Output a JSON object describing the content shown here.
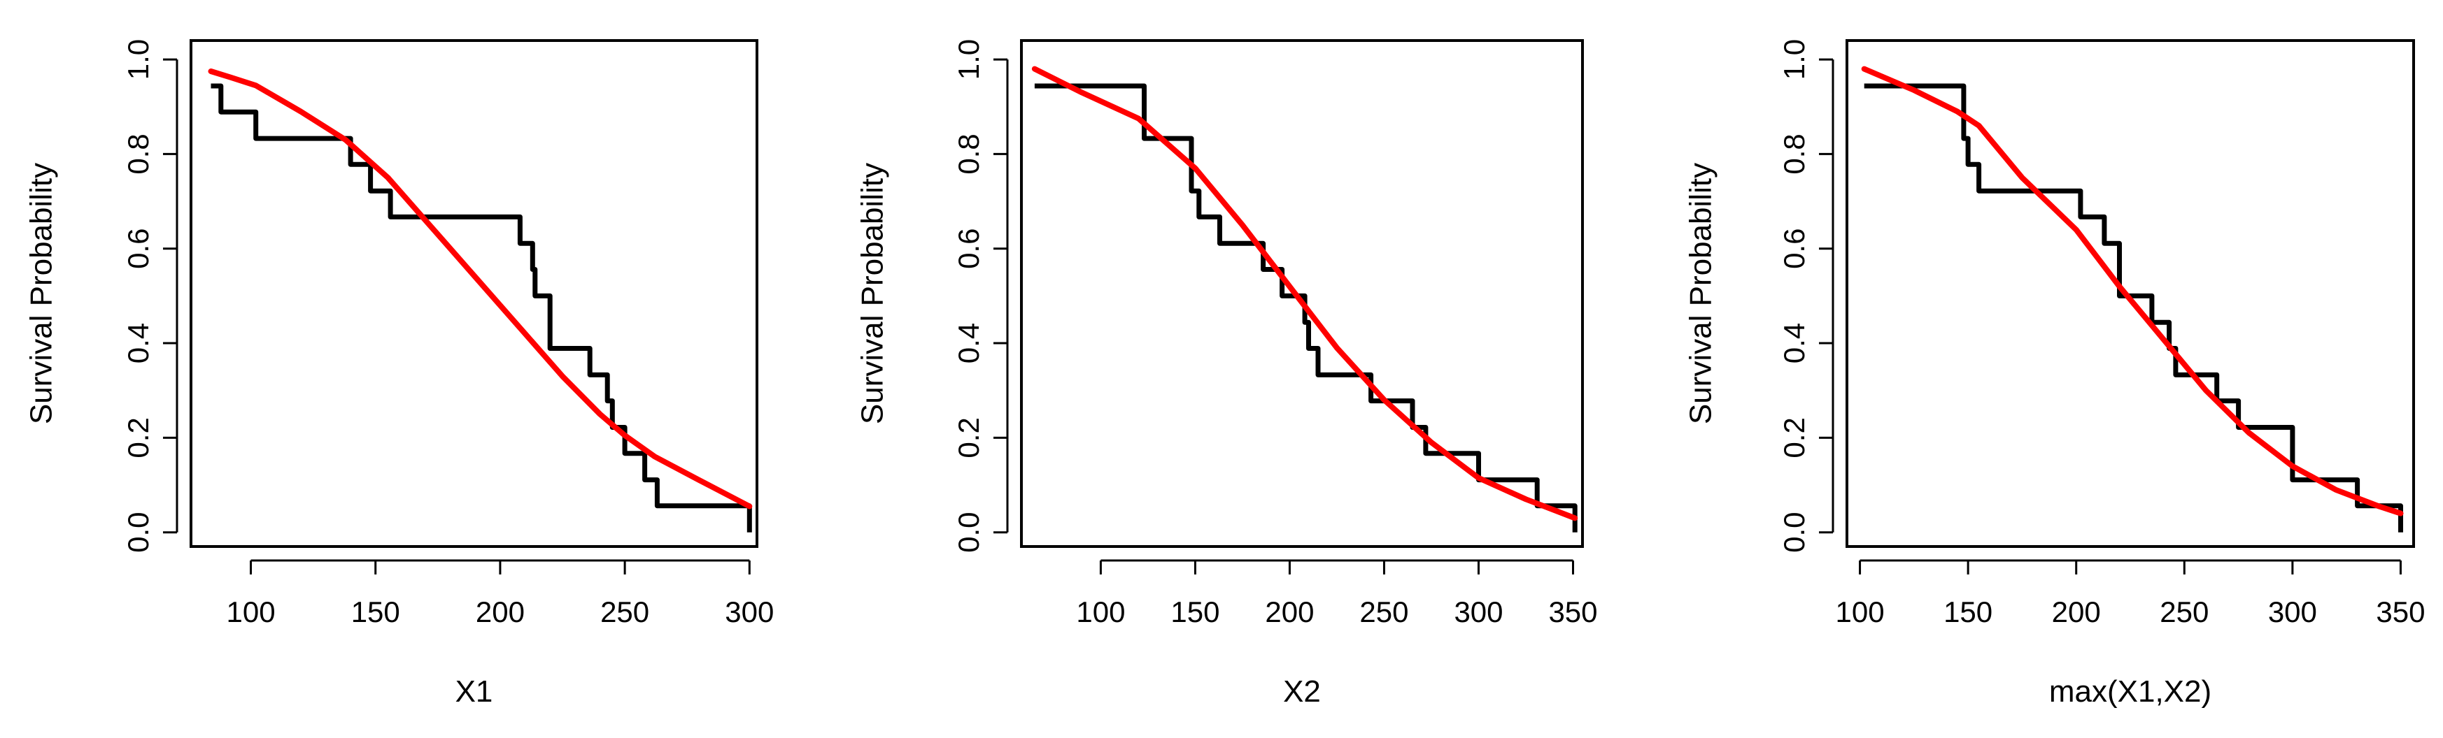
{
  "chart_data": [
    {
      "type": "line",
      "xlabel": "X1",
      "ylabel": "Survival Probability",
      "xlim": [
        76,
        303
      ],
      "ylim": [
        -0.03,
        1.04
      ],
      "x_ticks": [
        100,
        150,
        200,
        250,
        300
      ],
      "y_ticks": [
        0.0,
        0.2,
        0.4,
        0.6,
        0.8,
        1.0
      ],
      "x_tick_labels": [
        "100",
        "150",
        "200",
        "250",
        "300"
      ],
      "y_tick_labels": [
        "0.0",
        "0.2",
        "0.4",
        "0.6",
        "0.8",
        "1.0"
      ],
      "grid": false,
      "series": [
        {
          "kind": "step",
          "color": "#000000",
          "points": [
            [
              84,
              0.944
            ],
            [
              88,
              0.944
            ],
            [
              88,
              0.889
            ],
            [
              102,
              0.889
            ],
            [
              102,
              0.833
            ],
            [
              140,
              0.833
            ],
            [
              140,
              0.778
            ],
            [
              148,
              0.778
            ],
            [
              148,
              0.722
            ],
            [
              156,
              0.722
            ],
            [
              156,
              0.667
            ],
            [
              208,
              0.667
            ],
            [
              208,
              0.611
            ],
            [
              213,
              0.611
            ],
            [
              213,
              0.556
            ],
            [
              214,
              0.556
            ],
            [
              214,
              0.5
            ],
            [
              220,
              0.5
            ],
            [
              220,
              0.389
            ],
            [
              236,
              0.389
            ],
            [
              236,
              0.333
            ],
            [
              243,
              0.333
            ],
            [
              243,
              0.278
            ],
            [
              245,
              0.278
            ],
            [
              245,
              0.222
            ],
            [
              250,
              0.222
            ],
            [
              250,
              0.167
            ],
            [
              258,
              0.167
            ],
            [
              258,
              0.111
            ],
            [
              263,
              0.111
            ],
            [
              263,
              0.056
            ],
            [
              300,
              0.056
            ],
            [
              300,
              0.0
            ]
          ]
        },
        {
          "kind": "curve",
          "color": "#ff0000",
          "points": [
            [
              84,
              0.975
            ],
            [
              92,
              0.962
            ],
            [
              102,
              0.945
            ],
            [
              120,
              0.89
            ],
            [
              138,
              0.83
            ],
            [
              155,
              0.75
            ],
            [
              170,
              0.66
            ],
            [
              190,
              0.54
            ],
            [
              210,
              0.42
            ],
            [
              225,
              0.33
            ],
            [
              240,
              0.25
            ],
            [
              250,
              0.205
            ],
            [
              262,
              0.16
            ],
            [
              280,
              0.11
            ],
            [
              300,
              0.055
            ]
          ]
        }
      ]
    },
    {
      "type": "line",
      "xlabel": "X2",
      "ylabel": "Survival Probability",
      "xlim": [
        58,
        355
      ],
      "ylim": [
        -0.03,
        1.04
      ],
      "x_ticks": [
        100,
        150,
        200,
        250,
        300,
        350
      ],
      "y_ticks": [
        0.0,
        0.2,
        0.4,
        0.6,
        0.8,
        1.0
      ],
      "x_tick_labels": [
        "100",
        "150",
        "200",
        "250",
        "300",
        "350"
      ],
      "y_tick_labels": [
        "0.0",
        "0.2",
        "0.4",
        "0.6",
        "0.8",
        "1.0"
      ],
      "grid": false,
      "series": [
        {
          "kind": "step",
          "color": "#000000",
          "points": [
            [
              65,
              0.944
            ],
            [
              123,
              0.944
            ],
            [
              123,
              0.833
            ],
            [
              148,
              0.833
            ],
            [
              148,
              0.722
            ],
            [
              152,
              0.722
            ],
            [
              152,
              0.667
            ],
            [
              163,
              0.667
            ],
            [
              163,
              0.611
            ],
            [
              186,
              0.611
            ],
            [
              186,
              0.556
            ],
            [
              196,
              0.556
            ],
            [
              196,
              0.5
            ],
            [
              208,
              0.5
            ],
            [
              208,
              0.444
            ],
            [
              210,
              0.444
            ],
            [
              210,
              0.389
            ],
            [
              215,
              0.389
            ],
            [
              215,
              0.333
            ],
            [
              243,
              0.333
            ],
            [
              243,
              0.278
            ],
            [
              265,
              0.278
            ],
            [
              265,
              0.222
            ],
            [
              272,
              0.222
            ],
            [
              272,
              0.167
            ],
            [
              300,
              0.167
            ],
            [
              300,
              0.111
            ],
            [
              331,
              0.111
            ],
            [
              331,
              0.056
            ],
            [
              351,
              0.056
            ],
            [
              351,
              0.0
            ]
          ]
        },
        {
          "kind": "curve",
          "color": "#ff0000",
          "points": [
            [
              65,
              0.98
            ],
            [
              90,
              0.93
            ],
            [
              120,
              0.875
            ],
            [
              150,
              0.77
            ],
            [
              175,
              0.65
            ],
            [
              200,
              0.52
            ],
            [
              225,
              0.39
            ],
            [
              250,
              0.28
            ],
            [
              275,
              0.19
            ],
            [
              300,
              0.115
            ],
            [
              325,
              0.07
            ],
            [
              351,
              0.03
            ]
          ]
        }
      ]
    },
    {
      "type": "line",
      "xlabel": "max(X1,X2)",
      "ylabel": "Survival Probability",
      "xlim": [
        94,
        356
      ],
      "ylim": [
        -0.03,
        1.04
      ],
      "x_ticks": [
        100,
        150,
        200,
        250,
        300,
        350
      ],
      "y_ticks": [
        0.0,
        0.2,
        0.4,
        0.6,
        0.8,
        1.0
      ],
      "x_tick_labels": [
        "100",
        "150",
        "200",
        "250",
        "300",
        "350"
      ],
      "y_tick_labels": [
        "0.0",
        "0.2",
        "0.4",
        "0.6",
        "0.8",
        "1.0"
      ],
      "grid": false,
      "series": [
        {
          "kind": "step",
          "color": "#000000",
          "points": [
            [
              102,
              0.944
            ],
            [
              148,
              0.944
            ],
            [
              148,
              0.833
            ],
            [
              150,
              0.833
            ],
            [
              150,
              0.778
            ],
            [
              155,
              0.778
            ],
            [
              155,
              0.722
            ],
            [
              202,
              0.722
            ],
            [
              202,
              0.667
            ],
            [
              213,
              0.667
            ],
            [
              213,
              0.611
            ],
            [
              220,
              0.611
            ],
            [
              220,
              0.5
            ],
            [
              235,
              0.5
            ],
            [
              235,
              0.444
            ],
            [
              243,
              0.444
            ],
            [
              243,
              0.389
            ],
            [
              246,
              0.389
            ],
            [
              246,
              0.333
            ],
            [
              265,
              0.333
            ],
            [
              265,
              0.278
            ],
            [
              275,
              0.278
            ],
            [
              275,
              0.222
            ],
            [
              300,
              0.222
            ],
            [
              300,
              0.111
            ],
            [
              330,
              0.111
            ],
            [
              330,
              0.056
            ],
            [
              350,
              0.056
            ],
            [
              350,
              0.0
            ]
          ]
        },
        {
          "kind": "curve",
          "color": "#ff0000",
          "points": [
            [
              102,
              0.98
            ],
            [
              125,
              0.935
            ],
            [
              145,
              0.89
            ],
            [
              155,
              0.86
            ],
            [
              175,
              0.75
            ],
            [
              200,
              0.64
            ],
            [
              220,
              0.52
            ],
            [
              240,
              0.41
            ],
            [
              260,
              0.3
            ],
            [
              280,
              0.21
            ],
            [
              300,
              0.14
            ],
            [
              320,
              0.09
            ],
            [
              340,
              0.055
            ],
            [
              350,
              0.04
            ]
          ]
        }
      ]
    }
  ]
}
